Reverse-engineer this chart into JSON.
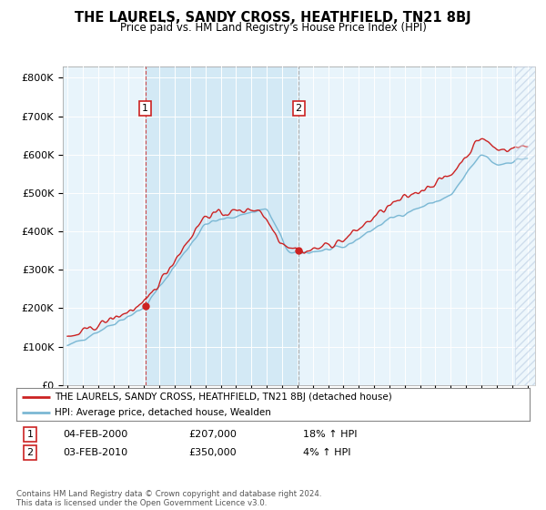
{
  "title": "THE LAURELS, SANDY CROSS, HEATHFIELD, TN21 8BJ",
  "subtitle": "Price paid vs. HM Land Registry's House Price Index (HPI)",
  "ylim": [
    0,
    800000
  ],
  "xlim_start": 1994.7,
  "xlim_end": 2025.5,
  "hpi_color": "#7bb8d4",
  "hpi_fill_color": "#d0e8f5",
  "price_color": "#cc2222",
  "marker1_x": 2000.08,
  "marker1_y": 207000,
  "marker2_x": 2010.08,
  "marker2_y": 350000,
  "legend_line1": "THE LAURELS, SANDY CROSS, HEATHFIELD, TN21 8BJ (detached house)",
  "legend_line2": "HPI: Average price, detached house, Wealden",
  "table_row1_num": "1",
  "table_row1_date": "04-FEB-2000",
  "table_row1_price": "£207,000",
  "table_row1_hpi": "18% ↑ HPI",
  "table_row2_num": "2",
  "table_row2_date": "03-FEB-2010",
  "table_row2_price": "£350,000",
  "table_row2_hpi": "4% ↑ HPI",
  "footnote": "Contains HM Land Registry data © Crown copyright and database right 2024.\nThis data is licensed under the Open Government Licence v3.0.",
  "background_color": "#e8f4fb"
}
